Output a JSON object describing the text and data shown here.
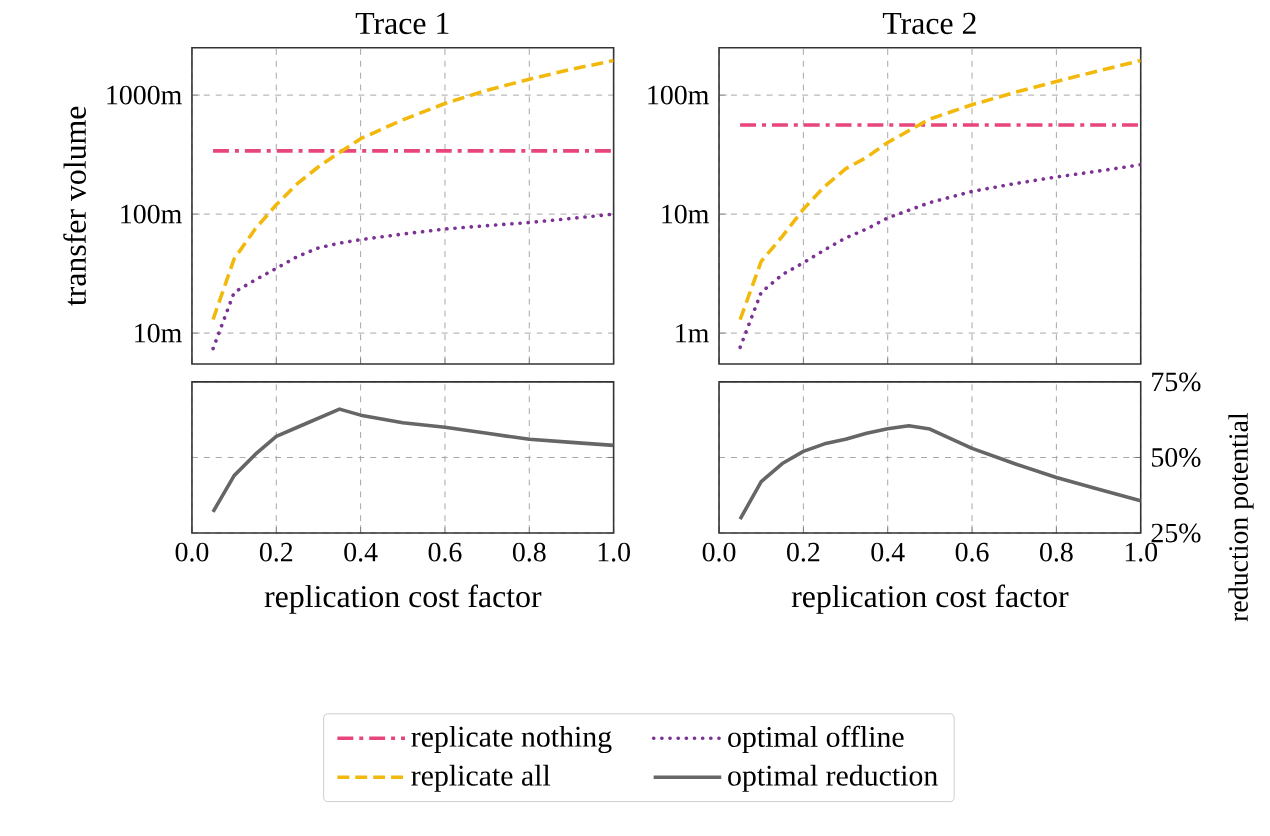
{
  "chart_data": [
    {
      "type": "line",
      "title": "Trace 1",
      "ylabel": "transfer volume",
      "log": "y",
      "grid": true,
      "legend": "bottom",
      "tick_labels": "y",
      "xlim": [
        0,
        1.0
      ],
      "ylim": [
        5.5,
        2500
      ],
      "xticks": [
        {
          "value": 0,
          "label": null
        },
        {
          "value": 0.2,
          "label": null
        },
        {
          "value": 0.4,
          "label": null
        },
        {
          "value": 0.6,
          "label": null
        },
        {
          "value": 0.8,
          "label": null
        },
        {
          "value": 1.0,
          "label": null
        }
      ],
      "yticks": [
        {
          "value": 10,
          "label": "10m"
        },
        {
          "value": 100,
          "label": "100m"
        },
        {
          "value": 1000,
          "label": "1000m"
        }
      ],
      "series": [
        {
          "name": "replicate nothing",
          "color": "#e8457a",
          "line_style": "dashdot",
          "x": [
            0.05,
            1.0
          ],
          "values": [
            340,
            340
          ]
        },
        {
          "name": "replicate all",
          "color": "#f2b90c",
          "line_style": "dashed",
          "x": [
            0.05,
            0.1,
            0.15,
            0.2,
            0.25,
            0.3,
            0.35,
            0.4,
            0.5,
            0.6,
            0.7,
            0.8,
            0.9,
            1.0
          ],
          "values": [
            13,
            42,
            75,
            120,
            180,
            250,
            330,
            430,
            620,
            850,
            1100,
            1360,
            1650,
            1950
          ]
        },
        {
          "name": "optimal offline",
          "color": "#7b3294",
          "line_style": "dotted",
          "x": [
            0.05,
            0.1,
            0.15,
            0.2,
            0.25,
            0.3,
            0.35,
            0.4,
            0.5,
            0.6,
            0.7,
            0.8,
            0.9,
            1.0
          ],
          "values": [
            7.4,
            22,
            28,
            35,
            44,
            52,
            57,
            61,
            68,
            75,
            80,
            85,
            92,
            100
          ]
        }
      ]
    },
    {
      "type": "line",
      "title": "Trace 2",
      "log": "y",
      "grid": true,
      "tick_labels": "y",
      "xlim": [
        0,
        1.0
      ],
      "ylim": [
        0.55,
        250
      ],
      "xticks": [
        {
          "value": 0,
          "label": null
        },
        {
          "value": 0.2,
          "label": null
        },
        {
          "value": 0.4,
          "label": null
        },
        {
          "value": 0.6,
          "label": null
        },
        {
          "value": 0.8,
          "label": null
        },
        {
          "value": 1.0,
          "label": null
        }
      ],
      "yticks": [
        {
          "value": 1,
          "label": "1m"
        },
        {
          "value": 10,
          "label": "10m"
        },
        {
          "value": 100,
          "label": "100m"
        }
      ],
      "series": [
        {
          "color": "#e8457a",
          "line_style": "dashdot",
          "x": [
            0.05,
            1.0
          ],
          "values": [
            56,
            56
          ]
        },
        {
          "color": "#f2b90c",
          "line_style": "dashed",
          "x": [
            0.05,
            0.1,
            0.15,
            0.2,
            0.25,
            0.3,
            0.35,
            0.4,
            0.5,
            0.6,
            0.7,
            0.8,
            0.9,
            1.0
          ],
          "values": [
            1.3,
            4,
            6.5,
            11,
            17,
            24,
            30,
            40,
            63,
            83,
            105,
            130,
            160,
            195
          ]
        },
        {
          "color": "#7b3294",
          "line_style": "dotted",
          "x": [
            0.05,
            0.1,
            0.15,
            0.2,
            0.25,
            0.3,
            0.35,
            0.4,
            0.5,
            0.6,
            0.7,
            0.8,
            0.9,
            1.0
          ],
          "values": [
            0.76,
            2.2,
            3.1,
            3.9,
            5,
            6.3,
            7.5,
            9.3,
            12.5,
            15.5,
            18,
            20.5,
            23,
            26
          ]
        }
      ]
    },
    {
      "type": "line",
      "xlabel": "replication cost factor",
      "grid": true,
      "tick_labels": "x",
      "xlim": [
        0,
        1.0
      ],
      "ylim": [
        25,
        75
      ],
      "xticks": [
        {
          "value": 0,
          "label": "0.0"
        },
        {
          "value": 0.2,
          "label": "0.2"
        },
        {
          "value": 0.4,
          "label": "0.4"
        },
        {
          "value": 0.6,
          "label": "0.6"
        },
        {
          "value": 0.8,
          "label": "0.8"
        },
        {
          "value": 1.0,
          "label": "1.0"
        }
      ],
      "yticks": [
        {
          "value": 25,
          "label": null
        },
        {
          "value": 50,
          "label": null
        },
        {
          "value": 75,
          "label": null
        }
      ],
      "series": [
        {
          "name": "optimal reduction",
          "color": "#666666",
          "line_style": "solid",
          "x": [
            0.05,
            0.1,
            0.15,
            0.2,
            0.25,
            0.3,
            0.35,
            0.4,
            0.5,
            0.6,
            0.7,
            0.8,
            0.9,
            1.0
          ],
          "values": [
            32,
            44,
            51,
            57,
            60,
            63,
            66,
            64,
            61.5,
            60,
            58,
            56,
            55,
            54
          ]
        }
      ]
    },
    {
      "type": "line",
      "xlabel": "replication cost factor",
      "ylabel": "reduction potential",
      "grid": true,
      "xlim": [
        0,
        1.0
      ],
      "ylim": [
        25,
        75
      ],
      "xticks": [
        {
          "value": 0,
          "label": "0.0"
        },
        {
          "value": 0.2,
          "label": "0.2"
        },
        {
          "value": 0.4,
          "label": "0.4"
        },
        {
          "value": 0.6,
          "label": "0.6"
        },
        {
          "value": 0.8,
          "label": "0.8"
        },
        {
          "value": 1.0,
          "label": "1.0"
        }
      ],
      "yticks": [
        {
          "value": 25,
          "label": "25%"
        },
        {
          "value": 50,
          "label": "50%"
        },
        {
          "value": 75,
          "label": "75%"
        }
      ],
      "series": [
        {
          "color": "#666666",
          "line_style": "solid",
          "x": [
            0.05,
            0.1,
            0.15,
            0.2,
            0.25,
            0.3,
            0.35,
            0.4,
            0.45,
            0.5,
            0.6,
            0.7,
            0.8,
            0.9,
            1.0
          ],
          "values": [
            29.6,
            42,
            48,
            52,
            54.5,
            56,
            58,
            59.5,
            60.5,
            59.4,
            53,
            48,
            43.4,
            39.5,
            35.7
          ]
        }
      ]
    }
  ]
}
